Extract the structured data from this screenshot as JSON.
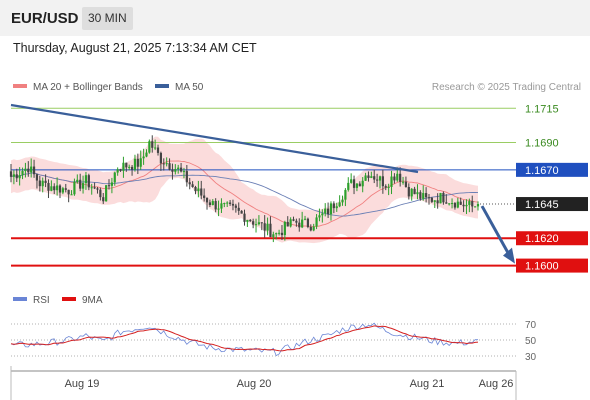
{
  "header": {
    "symbol": "EUR/USD",
    "timeframe": "30 MIN"
  },
  "datetime": "Thursday, August 21, 2025 7:13:34 AM CET",
  "legend": {
    "ma": "MA 20 + Bollinger Bands",
    "ma50": "MA 50",
    "rsi": "RSI",
    "rsi_ma": "9MA"
  },
  "copyright": "Research © 2025 Trading Central",
  "colors": {
    "bullish": "#2ca02c",
    "bearish": "#444444",
    "ma20": "#f08080",
    "band": "#f9c9c9",
    "ma50": "#6a7fb5",
    "trend": "#3a5f9a",
    "resistance_green": "#9acd63",
    "support_red": "#e01010",
    "pivot_blue": "#1f4fbf",
    "rsi": "#6a85d6",
    "rsi_ma": "#d42020"
  },
  "chart_data": {
    "type": "candlestick",
    "ylim": [
      1.1588,
      1.1724
    ],
    "x_tick_labels": [
      "Aug 19",
      "Aug 20",
      "Aug 21",
      "Aug 26"
    ],
    "horizontal_levels": [
      {
        "label": "1.1715",
        "value": 1.1715,
        "color": "green"
      },
      {
        "label": "1.1690",
        "value": 1.169,
        "color": "green"
      },
      {
        "label": "1.1670",
        "value": 1.167,
        "color": "blue"
      },
      {
        "label": "1.1645",
        "value": 1.1645,
        "color": "current"
      },
      {
        "label": "1.1620",
        "value": 1.162,
        "color": "red"
      },
      {
        "label": "1.1600",
        "value": 1.16,
        "color": "red"
      }
    ],
    "rsi_ticks": [
      "70",
      "50",
      "30"
    ],
    "rsi_range": [
      20,
      80
    ],
    "current_price": 1.1645,
    "target_price": 1.16,
    "close_keyframes": [
      [
        0,
        1.1665
      ],
      [
        6,
        1.1672
      ],
      [
        10,
        1.166
      ],
      [
        20,
        1.1655
      ],
      [
        26,
        1.1662
      ],
      [
        32,
        1.165
      ],
      [
        37,
        1.1672
      ],
      [
        45,
        1.1675
      ],
      [
        48,
        1.169
      ],
      [
        52,
        1.1678
      ],
      [
        58,
        1.167
      ],
      [
        64,
        1.1655
      ],
      [
        70,
        1.1645
      ],
      [
        78,
        1.164
      ],
      [
        86,
        1.163
      ],
      [
        92,
        1.1623
      ],
      [
        98,
        1.1632
      ],
      [
        104,
        1.163
      ],
      [
        110,
        1.164
      ],
      [
        114,
        1.165
      ],
      [
        118,
        1.166
      ],
      [
        120,
        1.166
      ],
      [
        124,
        1.1668
      ],
      [
        130,
        1.166
      ],
      [
        134,
        1.1668
      ],
      [
        138,
        1.1655
      ],
      [
        144,
        1.1648
      ],
      [
        150,
        1.165
      ],
      [
        156,
        1.1645
      ],
      [
        160,
        1.1643
      ],
      [
        162,
        1.1645
      ]
    ],
    "rsi_keyframes": [
      [
        0,
        43
      ],
      [
        10,
        45
      ],
      [
        20,
        50
      ],
      [
        26,
        55
      ],
      [
        32,
        48
      ],
      [
        38,
        60
      ],
      [
        44,
        65
      ],
      [
        48,
        68
      ],
      [
        54,
        58
      ],
      [
        62,
        47
      ],
      [
        70,
        40
      ],
      [
        78,
        38
      ],
      [
        86,
        36
      ],
      [
        92,
        35
      ],
      [
        98,
        42
      ],
      [
        104,
        50
      ],
      [
        110,
        55
      ],
      [
        114,
        62
      ],
      [
        118,
        66
      ],
      [
        124,
        70
      ],
      [
        130,
        62
      ],
      [
        136,
        56
      ],
      [
        142,
        52
      ],
      [
        148,
        48
      ],
      [
        154,
        46
      ],
      [
        162,
        48
      ]
    ]
  }
}
